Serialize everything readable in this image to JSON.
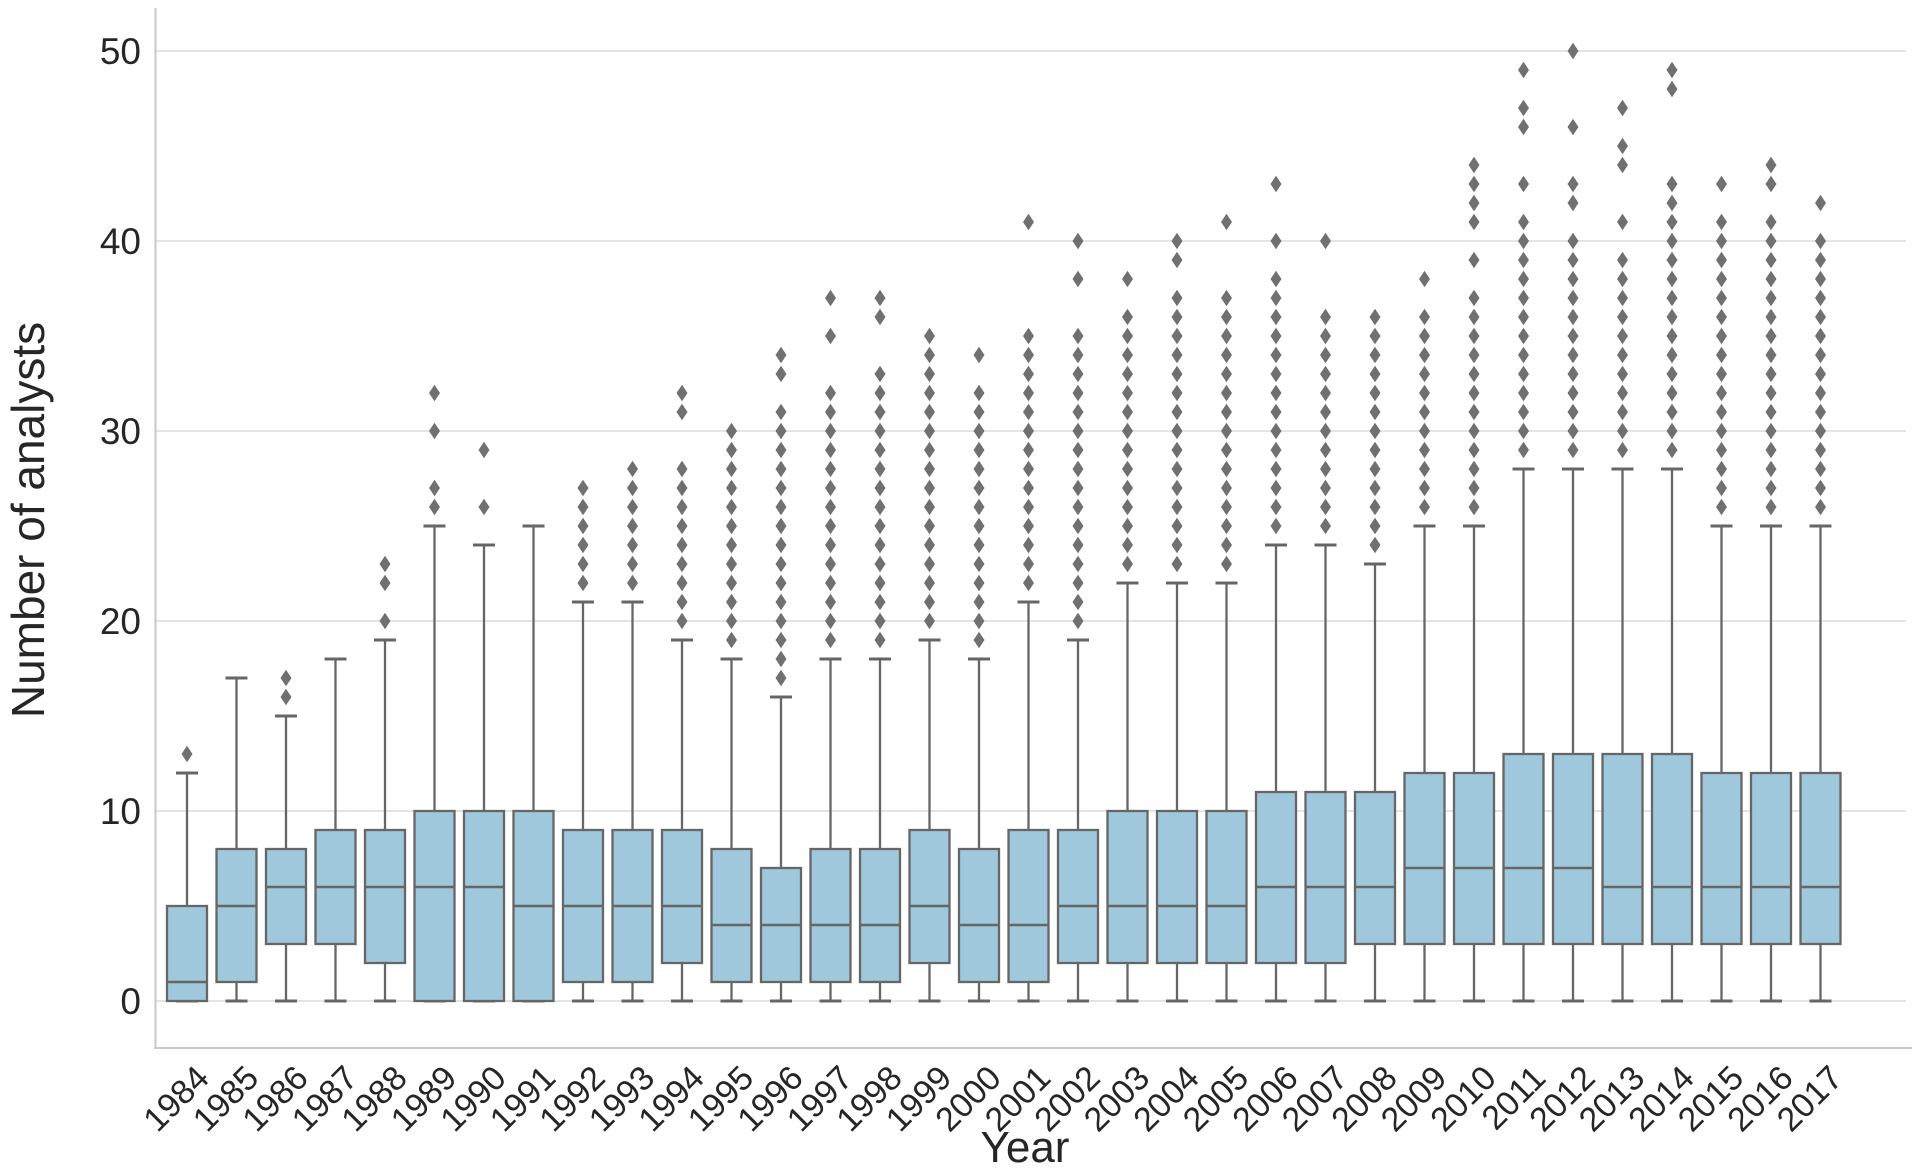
{
  "figure": {
    "title": "",
    "xlabel": "Year",
    "ylabel": "Number of analysts"
  },
  "chart_data": {
    "type": "boxplot",
    "title": "",
    "xlabel": "Year",
    "ylabel": "Number of analysts",
    "legend": "none",
    "grid": "horizontal",
    "yticks": [
      0,
      10,
      20,
      30,
      40,
      50
    ],
    "ylim": [
      -2.5,
      52.3
    ],
    "categories": [
      "1984",
      "1985",
      "1986",
      "1987",
      "1988",
      "1989",
      "1990",
      "1991",
      "1992",
      "1993",
      "1994",
      "1995",
      "1996",
      "1997",
      "1998",
      "1999",
      "2000",
      "2001",
      "2002",
      "2003",
      "2004",
      "2005",
      "2006",
      "2007",
      "2008",
      "2009",
      "2010",
      "2011",
      "2012",
      "2013",
      "2014",
      "2015",
      "2016",
      "2017"
    ],
    "boxes": [
      {
        "year": "1984",
        "whislo": 0,
        "q1": 0,
        "med": 1,
        "q3": 5,
        "whishi": 12,
        "outliers": [
          13
        ]
      },
      {
        "year": "1985",
        "whislo": 0,
        "q1": 1,
        "med": 5,
        "q3": 8,
        "whishi": 17,
        "outliers": []
      },
      {
        "year": "1986",
        "whislo": 0,
        "q1": 3,
        "med": 6,
        "q3": 8,
        "whishi": 15,
        "outliers": [
          16,
          17
        ]
      },
      {
        "year": "1987",
        "whislo": 0,
        "q1": 3,
        "med": 6,
        "q3": 9,
        "whishi": 18,
        "outliers": []
      },
      {
        "year": "1988",
        "whislo": 0,
        "q1": 2,
        "med": 6,
        "q3": 9,
        "whishi": 19,
        "outliers": [
          20,
          22,
          23
        ]
      },
      {
        "year": "1989",
        "whislo": 0,
        "q1": 0,
        "med": 6,
        "q3": 10,
        "whishi": 25,
        "outliers": [
          26,
          27,
          30,
          32
        ]
      },
      {
        "year": "1990",
        "whislo": 0,
        "q1": 0,
        "med": 6,
        "q3": 10,
        "whishi": 24,
        "outliers": [
          26,
          29
        ]
      },
      {
        "year": "1991",
        "whislo": 0,
        "q1": 0,
        "med": 5,
        "q3": 10,
        "whishi": 25,
        "outliers": []
      },
      {
        "year": "1992",
        "whislo": 0,
        "q1": 1,
        "med": 5,
        "q3": 9,
        "whishi": 21,
        "outliers": [
          22,
          23,
          24,
          25,
          26,
          27
        ]
      },
      {
        "year": "1993",
        "whislo": 0,
        "q1": 1,
        "med": 5,
        "q3": 9,
        "whishi": 21,
        "outliers": [
          22,
          23,
          24,
          25,
          26,
          27,
          28
        ]
      },
      {
        "year": "1994",
        "whislo": 0,
        "q1": 2,
        "med": 5,
        "q3": 9,
        "whishi": 19,
        "outliers": [
          20,
          21,
          22,
          23,
          24,
          25,
          26,
          27,
          28,
          31,
          32
        ]
      },
      {
        "year": "1995",
        "whislo": 0,
        "q1": 1,
        "med": 4,
        "q3": 8,
        "whishi": 18,
        "outliers": [
          19,
          20,
          21,
          22,
          23,
          24,
          25,
          26,
          27,
          28,
          29,
          30
        ]
      },
      {
        "year": "1996",
        "whislo": 0,
        "q1": 1,
        "med": 4,
        "q3": 7,
        "whishi": 16,
        "outliers": [
          17,
          18,
          19,
          20,
          21,
          22,
          23,
          24,
          25,
          26,
          27,
          28,
          29,
          30,
          31,
          33,
          34
        ]
      },
      {
        "year": "1997",
        "whislo": 0,
        "q1": 1,
        "med": 4,
        "q3": 8,
        "whishi": 18,
        "outliers": [
          19,
          20,
          21,
          22,
          23,
          24,
          25,
          26,
          27,
          28,
          29,
          30,
          31,
          32,
          35,
          37
        ]
      },
      {
        "year": "1998",
        "whislo": 0,
        "q1": 1,
        "med": 4,
        "q3": 8,
        "whishi": 18,
        "outliers": [
          19,
          20,
          21,
          22,
          23,
          24,
          25,
          26,
          27,
          28,
          29,
          30,
          31,
          32,
          33,
          36,
          37
        ]
      },
      {
        "year": "1999",
        "whislo": 0,
        "q1": 2,
        "med": 5,
        "q3": 9,
        "whishi": 19,
        "outliers": [
          20,
          21,
          22,
          23,
          24,
          25,
          26,
          27,
          28,
          29,
          30,
          31,
          32,
          33,
          34,
          35
        ]
      },
      {
        "year": "2000",
        "whislo": 0,
        "q1": 1,
        "med": 4,
        "q3": 8,
        "whishi": 18,
        "outliers": [
          19,
          20,
          21,
          22,
          23,
          24,
          25,
          26,
          27,
          28,
          29,
          30,
          31,
          32,
          34
        ]
      },
      {
        "year": "2001",
        "whislo": 0,
        "q1": 1,
        "med": 4,
        "q3": 9,
        "whishi": 21,
        "outliers": [
          22,
          23,
          24,
          25,
          26,
          27,
          28,
          29,
          30,
          31,
          32,
          33,
          34,
          35,
          41
        ]
      },
      {
        "year": "2002",
        "whislo": 0,
        "q1": 2,
        "med": 5,
        "q3": 9,
        "whishi": 19,
        "outliers": [
          20,
          21,
          22,
          23,
          24,
          25,
          26,
          27,
          28,
          29,
          30,
          31,
          32,
          33,
          34,
          35,
          38,
          40
        ]
      },
      {
        "year": "2003",
        "whislo": 0,
        "q1": 2,
        "med": 5,
        "q3": 10,
        "whishi": 22,
        "outliers": [
          23,
          24,
          25,
          26,
          27,
          28,
          29,
          30,
          31,
          32,
          33,
          34,
          35,
          36,
          38
        ]
      },
      {
        "year": "2004",
        "whislo": 0,
        "q1": 2,
        "med": 5,
        "q3": 10,
        "whishi": 22,
        "outliers": [
          23,
          24,
          25,
          26,
          27,
          28,
          29,
          30,
          31,
          32,
          33,
          34,
          35,
          36,
          37,
          39,
          40
        ]
      },
      {
        "year": "2005",
        "whislo": 0,
        "q1": 2,
        "med": 5,
        "q3": 10,
        "whishi": 22,
        "outliers": [
          23,
          24,
          25,
          26,
          27,
          28,
          29,
          30,
          31,
          32,
          33,
          34,
          35,
          36,
          37,
          41
        ]
      },
      {
        "year": "2006",
        "whislo": 0,
        "q1": 2,
        "med": 6,
        "q3": 11,
        "whishi": 24,
        "outliers": [
          25,
          26,
          27,
          28,
          29,
          30,
          31,
          32,
          33,
          34,
          35,
          36,
          37,
          38,
          40,
          43
        ]
      },
      {
        "year": "2007",
        "whislo": 0,
        "q1": 2,
        "med": 6,
        "q3": 11,
        "whishi": 24,
        "outliers": [
          25,
          26,
          27,
          28,
          29,
          30,
          31,
          32,
          33,
          34,
          35,
          36,
          40
        ]
      },
      {
        "year": "2008",
        "whislo": 0,
        "q1": 3,
        "med": 6,
        "q3": 11,
        "whishi": 23,
        "outliers": [
          24,
          25,
          26,
          27,
          28,
          29,
          30,
          31,
          32,
          33,
          34,
          35,
          36
        ]
      },
      {
        "year": "2009",
        "whislo": 0,
        "q1": 3,
        "med": 7,
        "q3": 12,
        "whishi": 25,
        "outliers": [
          26,
          27,
          28,
          29,
          30,
          31,
          32,
          33,
          34,
          35,
          36,
          38
        ]
      },
      {
        "year": "2010",
        "whislo": 0,
        "q1": 3,
        "med": 7,
        "q3": 12,
        "whishi": 25,
        "outliers": [
          26,
          27,
          28,
          29,
          30,
          31,
          32,
          33,
          34,
          35,
          36,
          37,
          39,
          41,
          42,
          43,
          44
        ]
      },
      {
        "year": "2011",
        "whislo": 0,
        "q1": 3,
        "med": 7,
        "q3": 13,
        "whishi": 28,
        "outliers": [
          29,
          30,
          31,
          32,
          33,
          34,
          35,
          36,
          37,
          38,
          39,
          40,
          41,
          43,
          46,
          47,
          49
        ]
      },
      {
        "year": "2012",
        "whislo": 0,
        "q1": 3,
        "med": 7,
        "q3": 13,
        "whishi": 28,
        "outliers": [
          29,
          30,
          31,
          32,
          33,
          34,
          35,
          36,
          37,
          38,
          39,
          40,
          42,
          43,
          46,
          50
        ]
      },
      {
        "year": "2013",
        "whislo": 0,
        "q1": 3,
        "med": 6,
        "q3": 13,
        "whishi": 28,
        "outliers": [
          29,
          30,
          31,
          32,
          33,
          34,
          35,
          36,
          37,
          38,
          39,
          41,
          44,
          45,
          47
        ]
      },
      {
        "year": "2014",
        "whislo": 0,
        "q1": 3,
        "med": 6,
        "q3": 13,
        "whishi": 28,
        "outliers": [
          29,
          30,
          31,
          32,
          33,
          34,
          35,
          36,
          37,
          38,
          39,
          40,
          41,
          42,
          43,
          48,
          49
        ]
      },
      {
        "year": "2015",
        "whislo": 0,
        "q1": 3,
        "med": 6,
        "q3": 12,
        "whishi": 25,
        "outliers": [
          26,
          27,
          28,
          29,
          30,
          31,
          32,
          33,
          34,
          35,
          36,
          37,
          38,
          39,
          40,
          41,
          43
        ]
      },
      {
        "year": "2016",
        "whislo": 0,
        "q1": 3,
        "med": 6,
        "q3": 12,
        "whishi": 25,
        "outliers": [
          26,
          27,
          28,
          29,
          30,
          31,
          32,
          33,
          34,
          35,
          36,
          37,
          38,
          39,
          40,
          41,
          43,
          44
        ]
      },
      {
        "year": "2017",
        "whislo": 0,
        "q1": 3,
        "med": 6,
        "q3": 12,
        "whishi": 25,
        "outliers": [
          26,
          27,
          28,
          29,
          30,
          31,
          32,
          33,
          34,
          35,
          36,
          37,
          38,
          39,
          40,
          42
        ]
      }
    ],
    "style": {
      "box_fill": "#9fc8dd",
      "box_edge": "#666666",
      "whisker_color": "#666666",
      "median_color": "#666666",
      "outlier_color": "#707070",
      "grid_color": "#dcdcdc",
      "spine_color": "#c9c9c9",
      "text_color": "#262626",
      "background": "#ffffff"
    }
  }
}
